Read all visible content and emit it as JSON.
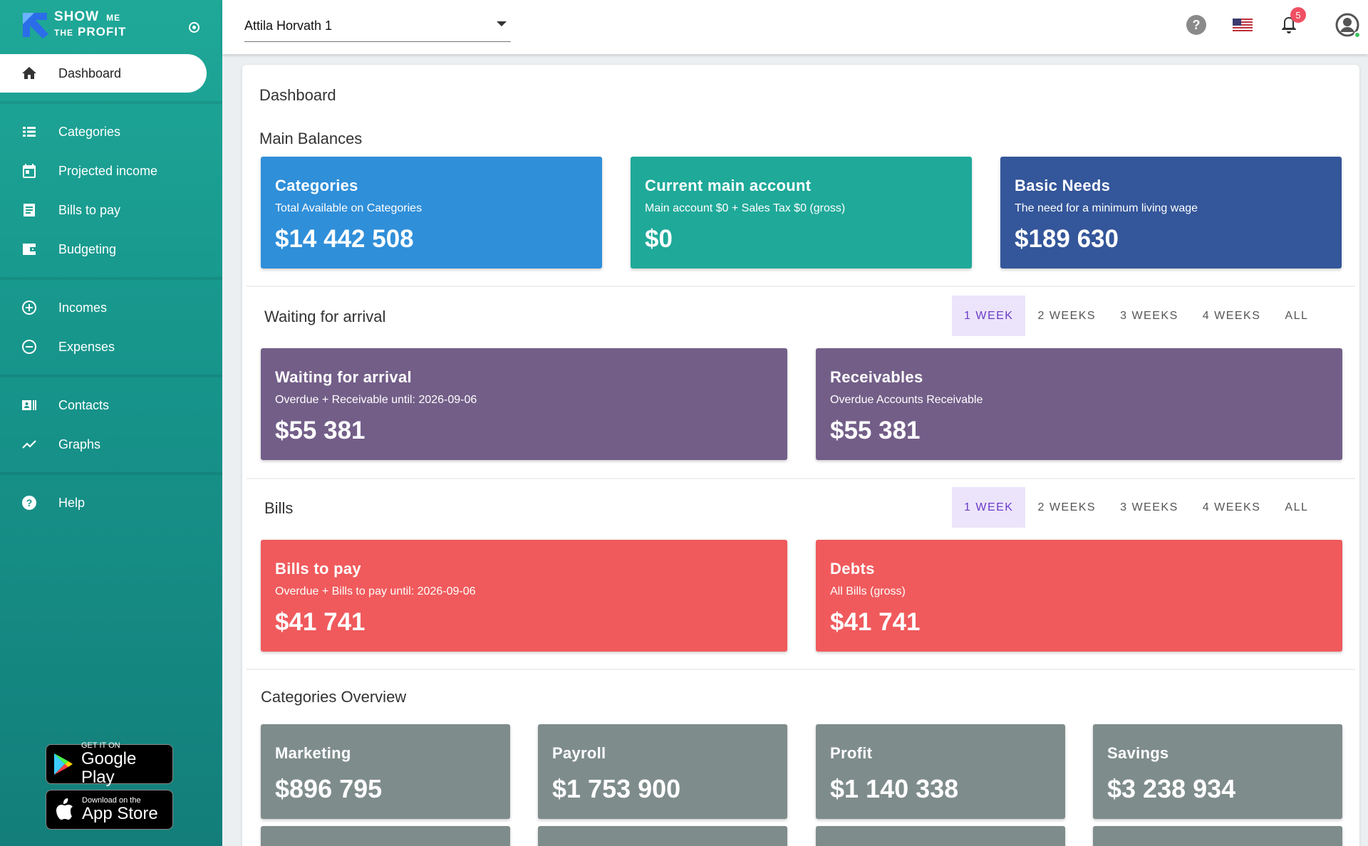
{
  "app": {
    "logo_line1": "SHOW",
    "logo_me": "ME",
    "logo_the": "THE",
    "logo_line2": "PROFIT"
  },
  "sidebar": {
    "items": [
      {
        "label": "Dashboard",
        "icon": "home-icon"
      },
      {
        "label": "Categories",
        "icon": "list-icon"
      },
      {
        "label": "Projected income",
        "icon": "calendar-icon"
      },
      {
        "label": "Bills to pay",
        "icon": "receipt-icon"
      },
      {
        "label": "Budgeting",
        "icon": "wallet-icon"
      },
      {
        "label": "Incomes",
        "icon": "plus-circle-icon"
      },
      {
        "label": "Expenses",
        "icon": "minus-circle-icon"
      },
      {
        "label": "Contacts",
        "icon": "contacts-icon"
      },
      {
        "label": "Graphs",
        "icon": "trend-icon"
      },
      {
        "label": "Help",
        "icon": "help-icon"
      }
    ],
    "google_play": {
      "small": "GET IT ON",
      "big": "Google Play"
    },
    "app_store": {
      "small": "Download on the",
      "big": "App Store"
    }
  },
  "topbar": {
    "account": "Attila Horvath 1",
    "notification_count": "5"
  },
  "page": {
    "title": "Dashboard",
    "main_balances": {
      "title": "Main Balances",
      "cards": [
        {
          "title": "Categories",
          "subtitle": "Total Available on Categories",
          "value": "$14 442 508"
        },
        {
          "title": "Current main account",
          "subtitle": "Main account $0 + Sales Tax $0 (gross)",
          "value": "$0"
        },
        {
          "title": "Basic Needs",
          "subtitle": "The need for a minimum living wage",
          "value": "$189 630"
        }
      ]
    },
    "waiting": {
      "title": "Waiting for arrival",
      "tabs": [
        "1 WEEK",
        "2 WEEKS",
        "3 WEEKS",
        "4 WEEKS",
        "ALL"
      ],
      "cards": [
        {
          "title": "Waiting for arrival",
          "subtitle": "Overdue + Receivable until: 2026-09-06",
          "value": "$55 381"
        },
        {
          "title": "Receivables",
          "subtitle": "Overdue Accounts Receivable",
          "value": "$55 381"
        }
      ]
    },
    "bills": {
      "title": "Bills",
      "tabs": [
        "1 WEEK",
        "2 WEEKS",
        "3 WEEKS",
        "4 WEEKS",
        "ALL"
      ],
      "cards": [
        {
          "title": "Bills to pay",
          "subtitle": "Overdue + Bills to pay until: 2026-09-06",
          "value": "$41 741"
        },
        {
          "title": "Debts",
          "subtitle": "All Bills (gross)",
          "value": "$41 741"
        }
      ]
    },
    "categories_overview": {
      "title": "Categories Overview",
      "cards": [
        {
          "title": "Marketing",
          "value": "$896 795"
        },
        {
          "title": "Payroll",
          "value": "$1 753 900"
        },
        {
          "title": "Profit",
          "value": "$1 140 338"
        },
        {
          "title": "Savings",
          "value": "$3 238 934"
        }
      ]
    }
  },
  "colors": {
    "sidebar": "#1fa898",
    "blue": "#2f8fd9",
    "teal": "#1fa999",
    "navy": "#34569a",
    "purple": "#735e88",
    "red": "#f05a5c",
    "grey": "#7f8c8c",
    "tab_selected": "#ece4fa"
  }
}
